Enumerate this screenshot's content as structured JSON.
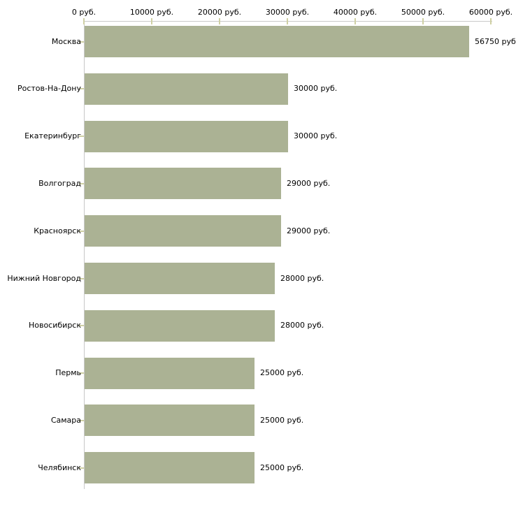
{
  "chart_data": {
    "type": "bar",
    "orientation": "horizontal",
    "categories": [
      "Москва",
      "Ростов-На-Дону",
      "Екатеринбург",
      "Волгоград",
      "Красноярск",
      "Нижний Новгород",
      "Новосибирск",
      "Пермь",
      "Самара",
      "Челябинск"
    ],
    "values": [
      56750,
      30000,
      30000,
      29000,
      29000,
      28000,
      28000,
      25000,
      25000,
      25000
    ],
    "value_labels": [
      "56750 руб",
      "30000 руб.",
      "30000 руб.",
      "29000 руб.",
      "29000 руб.",
      "28000 руб.",
      "28000 руб.",
      "25000 руб.",
      "25000 руб.",
      "25000 руб."
    ],
    "x_axis": {
      "position": "top",
      "range": [
        0,
        60000
      ],
      "ticks": [
        0,
        10000,
        20000,
        30000,
        40000,
        50000,
        60000
      ],
      "tick_labels": [
        "0 руб.",
        "10000 руб.",
        "20000 руб.",
        "30000 руб.",
        "40000 руб.",
        "50000 руб.",
        "60000 руб."
      ]
    },
    "grid": false,
    "legend": false,
    "colors": {
      "bar_fill": "#abb294",
      "axis_line": "#c8c8c8",
      "tick_mark": "#cfd0a4",
      "text": "#000000",
      "background": "#ffffff"
    }
  }
}
